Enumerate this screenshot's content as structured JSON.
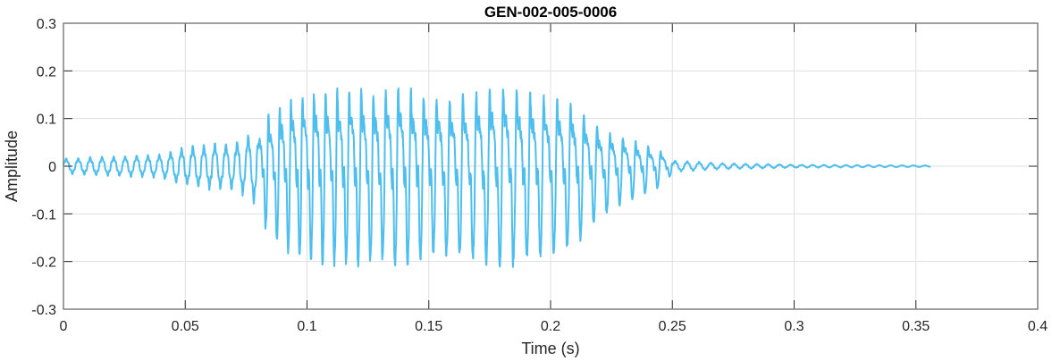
{
  "chart_data": {
    "type": "line",
    "title": "GEN-002-005-0006",
    "xlabel": "Time (s)",
    "ylabel": "Amplitude",
    "xlim": [
      0,
      0.4
    ],
    "ylim": [
      -0.3,
      0.3
    ],
    "xticks": [
      0,
      0.05,
      0.1,
      0.15,
      0.2,
      0.25,
      0.3,
      0.35,
      0.4
    ],
    "xtick_labels": [
      "0",
      "0.05",
      "0.1",
      "0.15",
      "0.2",
      "0.25",
      "0.3",
      "0.35",
      "0.4"
    ],
    "yticks": [
      -0.3,
      -0.2,
      -0.1,
      0,
      0.1,
      0.2,
      0.3
    ],
    "ytick_labels": [
      "-0.3",
      "-0.2",
      "-0.1",
      "0",
      "0.1",
      "0.2",
      "0.3"
    ],
    "grid": true,
    "color": "#4DBEEE",
    "series": [
      {
        "signal_end_time": 0.356,
        "envelope_time": [
          0,
          0.02,
          0.04,
          0.05,
          0.06,
          0.07,
          0.08,
          0.09,
          0.1,
          0.11,
          0.12,
          0.13,
          0.14,
          0.15,
          0.16,
          0.17,
          0.18,
          0.19,
          0.2,
          0.21,
          0.22,
          0.23,
          0.24,
          0.245,
          0.25,
          0.27,
          0.3,
          0.356
        ],
        "envelope_amplitude": [
          0.02,
          0.025,
          0.03,
          0.05,
          0.06,
          0.06,
          0.1,
          0.16,
          0.18,
          0.19,
          0.19,
          0.18,
          0.2,
          0.17,
          0.17,
          0.18,
          0.2,
          0.18,
          0.17,
          0.15,
          0.1,
          0.07,
          0.05,
          0.04,
          0.015,
          0.008,
          0.004,
          0.002
        ]
      }
    ]
  }
}
